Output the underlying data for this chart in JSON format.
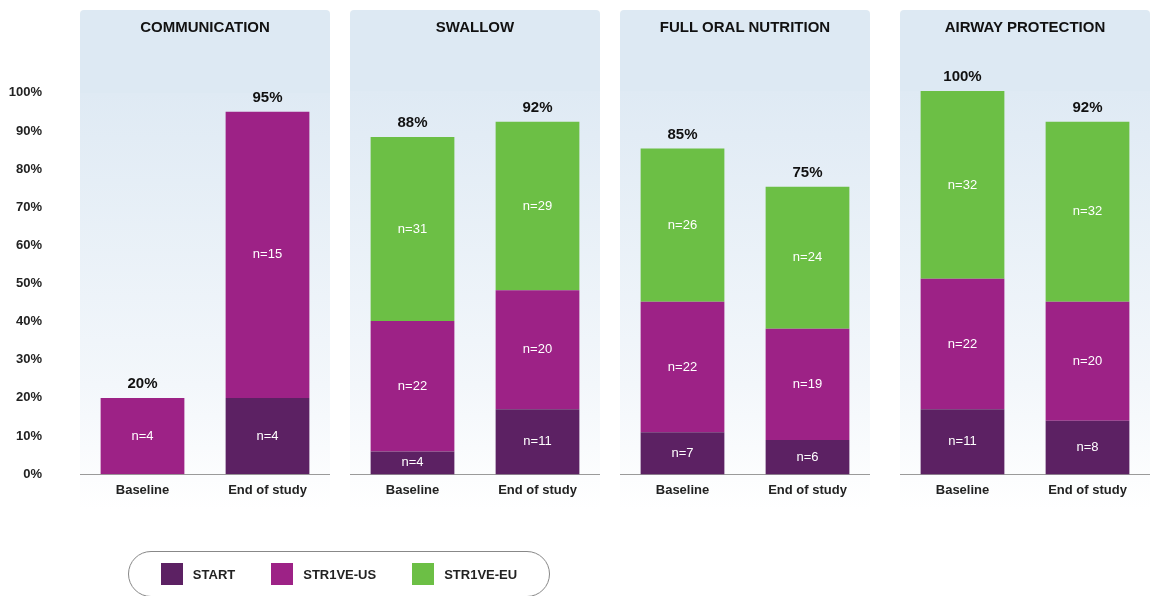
{
  "chart_data": [
    {
      "type": "bar",
      "title": "COMMUNICATION",
      "categories": [
        "Baseline",
        "End of study"
      ],
      "stacked": true,
      "legend": "bottom",
      "grid": false,
      "ylim": [
        0,
        100
      ],
      "yticks": [
        {
          "value": 0,
          "label": "0%"
        },
        {
          "value": 10,
          "label": "10%"
        },
        {
          "value": 20,
          "label": "20%"
        },
        {
          "value": 30,
          "label": "30%"
        },
        {
          "value": 40,
          "label": "40%"
        },
        {
          "value": 50,
          "label": "50%"
        },
        {
          "value": 60,
          "label": "60%"
        },
        {
          "value": 70,
          "label": "70%"
        },
        {
          "value": 80,
          "label": "80%"
        },
        {
          "value": 90,
          "label": "90%"
        },
        {
          "value": 100,
          "label": "100%"
        }
      ],
      "totals": [
        "20%",
        "95%"
      ],
      "annotations": [
        "n=4",
        "n=4",
        "n=15"
      ],
      "series": [
        {
          "name": "START",
          "color": "#5c2163",
          "values": [
            null,
            20
          ]
        },
        {
          "name": "STR1VE-US",
          "color": "#9d2286",
          "values": [
            20,
            75
          ]
        },
        {
          "name": "STR1VE-EU",
          "color": "#6cbf45",
          "values": [
            null,
            null
          ]
        }
      ]
    },
    {
      "type": "bar",
      "title": "SWALLOW",
      "categories": [
        "Baseline",
        "End of study"
      ],
      "stacked": true,
      "grid": false,
      "tick_labels": "x",
      "ylim": [
        0,
        100
      ],
      "totals": [
        "88%",
        "92%"
      ],
      "annotations": [
        "n=4",
        "n=11",
        "n=22",
        "n=20",
        "n=31",
        "n=29"
      ],
      "series": [
        {
          "color": "#5c2163",
          "values": [
            6,
            17
          ]
        },
        {
          "color": "#9d2286",
          "values": [
            34,
            31
          ]
        },
        {
          "color": "#6cbf45",
          "values": [
            48,
            44
          ]
        }
      ]
    },
    {
      "type": "bar",
      "title": "FULL ORAL NUTRITION",
      "categories": [
        "Baseline",
        "End of study"
      ],
      "stacked": true,
      "grid": false,
      "tick_labels": "x",
      "ylim": [
        0,
        100
      ],
      "totals": [
        "85%",
        "75%"
      ],
      "annotations": [
        "n=7",
        "n=6",
        "n=22",
        "n=19",
        "n=26",
        "n=24"
      ],
      "series": [
        {
          "color": "#5c2163",
          "values": [
            11,
            9
          ]
        },
        {
          "color": "#9d2286",
          "values": [
            34,
            29
          ]
        },
        {
          "color": "#6cbf45",
          "values": [
            40,
            37
          ]
        }
      ]
    },
    {
      "type": "bar",
      "title": "AIRWAY PROTECTION",
      "categories": [
        "Baseline",
        "End of study"
      ],
      "stacked": true,
      "grid": false,
      "tick_labels": "x",
      "ylim": [
        0,
        100
      ],
      "totals": [
        "100%",
        "92%"
      ],
      "annotations": [
        "n=11",
        "n=8",
        "n=22",
        "n=20",
        "n=32",
        "n=32"
      ],
      "series": [
        {
          "color": "#5c2163",
          "values": [
            17,
            14
          ]
        },
        {
          "color": "#9d2286",
          "values": [
            34,
            31
          ]
        },
        {
          "color": "#6cbf45",
          "values": [
            49,
            47
          ]
        }
      ]
    }
  ]
}
